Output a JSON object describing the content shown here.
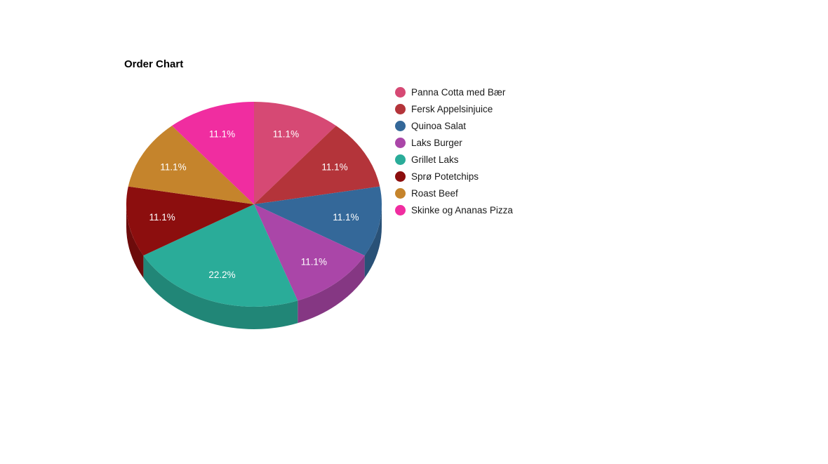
{
  "chart_data": {
    "type": "pie",
    "style": "3d",
    "title": "Order Chart",
    "legend_position": "right",
    "background_color": "#ffffff",
    "slice_label_color": "#ffffff",
    "legend_text_color": "#1a1a1a",
    "start_angle_deg": 0,
    "direction": "clockwise",
    "slices": [
      {
        "label": "Panna Cotta med Bær",
        "value": 11.1,
        "percent_label": "11.1%",
        "color": "#d64974"
      },
      {
        "label": "Fersk Appelsinjuice",
        "value": 11.1,
        "percent_label": "11.1%",
        "color": "#b4343a"
      },
      {
        "label": "Quinoa Salat",
        "value": 11.1,
        "percent_label": "11.1%",
        "color": "#346899"
      },
      {
        "label": "Laks Burger",
        "value": 11.1,
        "percent_label": "11.1%",
        "color": "#aa46a8"
      },
      {
        "label": "Grillet Laks",
        "value": 22.2,
        "percent_label": "22.2%",
        "color": "#2aac99"
      },
      {
        "label": "Sprø Potetchips",
        "value": 11.1,
        "percent_label": "11.1%",
        "color": "#8c0e0e"
      },
      {
        "label": "Roast Beef",
        "value": 11.1,
        "percent_label": "11.1%",
        "color": "#c5842c"
      },
      {
        "label": "Skinke og Ananas Pizza",
        "value": 11.1,
        "percent_label": "11.1%",
        "color": "#f02da0"
      }
    ]
  }
}
